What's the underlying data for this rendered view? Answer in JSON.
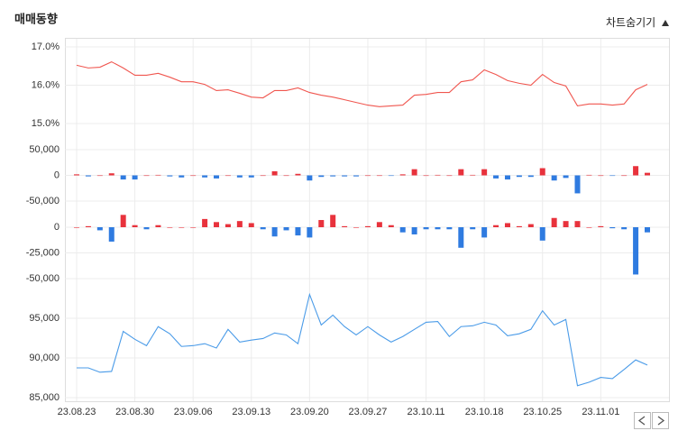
{
  "title": "매매동향",
  "toggle_label": "차트숨기기",
  "chart_data": [
    {
      "type": "line",
      "color": "#f0564f",
      "values": [
        16.52,
        16.45,
        16.47,
        16.61,
        16.45,
        16.26,
        16.26,
        16.31,
        16.21,
        16.09,
        16.09,
        16.02,
        15.86,
        15.88,
        15.79,
        15.69,
        15.67,
        15.86,
        15.86,
        15.93,
        15.81,
        15.74,
        15.69,
        15.62,
        15.55,
        15.48,
        15.44,
        15.46,
        15.48,
        15.74,
        15.76,
        15.81,
        15.81,
        16.09,
        16.14,
        16.4,
        16.28,
        16.12,
        16.05,
        16.0,
        16.28,
        16.07,
        15.98,
        15.46,
        15.51,
        15.51,
        15.48,
        15.51,
        15.88,
        16.02
      ],
      "ylim": [
        15,
        17
      ],
      "yticks": [
        {
          "value": 15,
          "label": "15.0%"
        },
        {
          "value": 16,
          "label": "16.0%"
        },
        {
          "value": 17,
          "label": "17.0%"
        }
      ],
      "grid": true
    },
    {
      "type": "bar",
      "positive_color": "#e8323c",
      "negative_color": "#2f7be0",
      "values": [
        2000,
        -2000,
        0,
        4000,
        -8000,
        -8000,
        0,
        1000,
        -2000,
        -4000,
        0,
        -4000,
        -6000,
        0,
        -4000,
        -4000,
        0,
        8000,
        0,
        3000,
        -10000,
        -3000,
        -2000,
        -2000,
        -2000,
        0,
        0,
        -1000,
        2000,
        12000,
        0,
        1000,
        0,
        12000,
        1000,
        12000,
        -6000,
        -8000,
        -3000,
        -3000,
        14000,
        -10000,
        -5000,
        -35000,
        1000,
        0,
        -1000,
        0,
        18000,
        5000
      ],
      "ylim": [
        -50000,
        50000
      ],
      "yticks": [
        {
          "value": -50000,
          "label": "-50,000"
        },
        0,
        {
          "value": 50000,
          "label": "50,000"
        }
      ],
      "grid": true
    },
    {
      "type": "bar",
      "positive_color": "#e8323c",
      "negative_color": "#2f7be0",
      "values": [
        0,
        1000,
        -3000,
        -14000,
        12000,
        2000,
        -2000,
        2000,
        0,
        0,
        0,
        8000,
        5000,
        3000,
        6000,
        4000,
        -2000,
        -9000,
        -3000,
        -8000,
        -10000,
        7000,
        12000,
        1000,
        0,
        1000,
        5000,
        2000,
        -5000,
        -7000,
        -2000,
        -2000,
        -2000,
        -20000,
        -2000,
        -10000,
        2000,
        4000,
        1000,
        3000,
        -13000,
        9000,
        6000,
        6000,
        0,
        1000,
        -1000,
        -2000,
        -46000,
        -5000
      ],
      "ylim": [
        -50000,
        15000
      ],
      "yticks": [
        {
          "value": -50000,
          "label": "-50,000"
        },
        {
          "value": -25000,
          "label": "-25,000"
        },
        0
      ],
      "grid": true
    },
    {
      "type": "line",
      "color": "#4a9be8",
      "categories": [
        "23.08.23",
        null,
        null,
        null,
        null,
        "23.08.30",
        null,
        null,
        null,
        null,
        "23.09.06",
        null,
        null,
        null,
        null,
        "23.09.13",
        null,
        null,
        null,
        null,
        "23.09.20",
        null,
        null,
        null,
        null,
        "23.09.27",
        null,
        null,
        null,
        null,
        "23.10.11",
        null,
        null,
        null,
        null,
        "23.10.18",
        null,
        null,
        null,
        null,
        "23.10.25",
        null,
        null,
        null,
        null,
        "23.11.01",
        null,
        null,
        null,
        null
      ],
      "values": [
        88750,
        88750,
        88200,
        88300,
        93350,
        92350,
        91550,
        93950,
        93050,
        91450,
        91550,
        91800,
        91250,
        93600,
        92000,
        92250,
        92450,
        93150,
        92900,
        91800,
        98000,
        94150,
        95400,
        93950,
        92900,
        93950,
        92900,
        92000,
        92700,
        93600,
        94500,
        94600,
        92700,
        93950,
        94050,
        94500,
        94150,
        92800,
        93050,
        93600,
        95950,
        94150,
        94850,
        86500,
        86950,
        87550,
        87400,
        88550,
        89750,
        89100
      ],
      "ylim": [
        85000,
        99000
      ],
      "yticks": [
        {
          "value": 85000,
          "label": "85,000"
        },
        {
          "value": 90000,
          "label": "90,000"
        },
        {
          "value": 95000,
          "label": "95,000"
        }
      ],
      "grid": true
    }
  ]
}
